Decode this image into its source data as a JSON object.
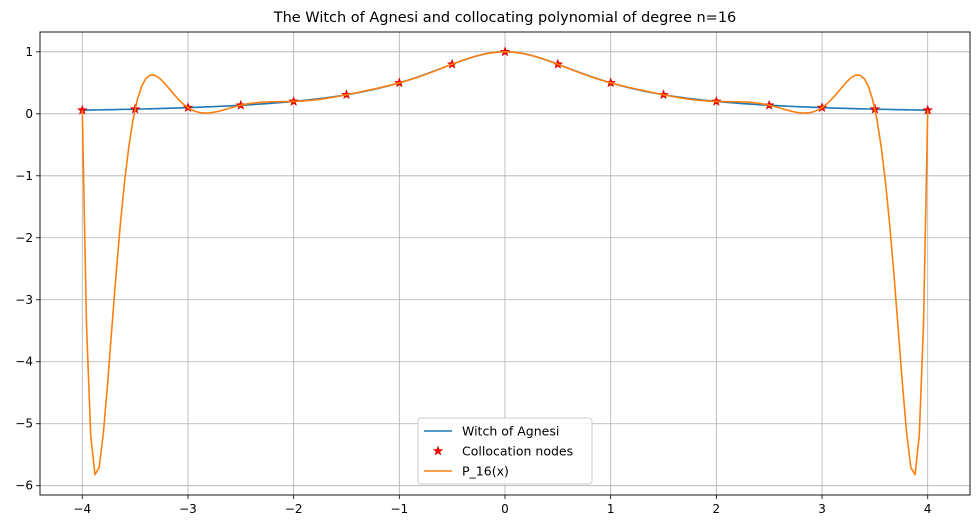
{
  "chart_data": {
    "type": "line",
    "title": "The Witch of Agnesi and collocating polynomial of degree n=16",
    "xlabel": "",
    "ylabel": "",
    "xlim": [
      -4.4,
      4.4
    ],
    "ylim": [
      -6.15,
      1.32
    ],
    "x_ticks": [
      -4,
      -3,
      -2,
      -1,
      0,
      1,
      2,
      3,
      4
    ],
    "x_tick_labels": [
      "−4",
      "−3",
      "−2",
      "−1",
      "0",
      "1",
      "2",
      "3",
      "4"
    ],
    "y_ticks": [
      1,
      0,
      -1,
      -2,
      -3,
      -4,
      -5,
      -6
    ],
    "y_tick_labels": [
      "1",
      "0",
      "−1",
      "−2",
      "−3",
      "−4",
      "−5",
      "−6"
    ],
    "grid": true,
    "legend_position": "lower-center",
    "series": [
      {
        "name": "Witch of Agnesi",
        "color": "#1f77b4",
        "kind": "line",
        "function": "1/(1+x^2)",
        "domain": [
          -4,
          4
        ]
      },
      {
        "name": "Collocation nodes",
        "color": "#ff0000",
        "kind": "markers",
        "marker": "star",
        "x": [
          -4,
          -3.5,
          -3,
          -2.5,
          -2,
          -1.5,
          -1,
          -0.5,
          0,
          0.5,
          1,
          1.5,
          2,
          2.5,
          3,
          3.5,
          4
        ],
        "y": [
          0.0588,
          0.0755,
          0.1,
          0.1379,
          0.2,
          0.3077,
          0.5,
          0.8,
          1.0,
          0.8,
          0.5,
          0.3077,
          0.2,
          0.1379,
          0.1,
          0.0755,
          0.0588
        ]
      },
      {
        "name": "P_16(x)",
        "color": "#ff7f0e",
        "kind": "line",
        "function": "interpolating polynomial of degree 16 through the collocation nodes",
        "domain": [
          -4,
          4
        ]
      }
    ]
  }
}
